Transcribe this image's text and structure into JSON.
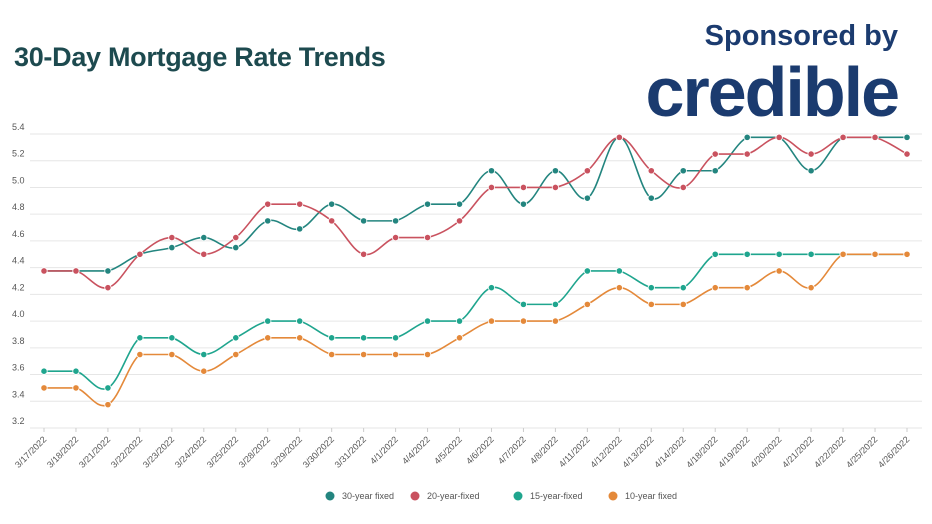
{
  "header": {
    "title": "30-Day Mortgage Rate Trends",
    "sponsor_text": "Sponsored by",
    "logo_text": "credible"
  },
  "colors": {
    "title": "#1d4a4f",
    "brand": "#1b3b6f"
  },
  "chart_data": {
    "type": "line",
    "title": "30-Day Mortgage Rate Trends",
    "xlabel": "",
    "ylabel": "",
    "ylim": [
      3.2,
      5.4
    ],
    "yticks": [
      "3.2",
      "3.4",
      "3.6",
      "3.8",
      "4.0",
      "4.2",
      "4.4",
      "4.6",
      "4.8",
      "5.0",
      "5.2",
      "5.4"
    ],
    "grid": true,
    "legend_position": "bottom",
    "categories": [
      "3/17/2022",
      "3/18/2022",
      "3/21/2022",
      "3/22/2022",
      "3/23/2022",
      "3/24/2022",
      "3/25/2022",
      "3/28/2022",
      "3/29/2022",
      "3/30/2022",
      "3/31/2022",
      "4/1/2022",
      "4/4/2022",
      "4/5/2022",
      "4/6/2022",
      "4/7/2022",
      "4/8/2022",
      "4/11/2022",
      "4/12/2022",
      "4/13/2022",
      "4/14/2022",
      "4/18/2022",
      "4/19/2022",
      "4/20/2022",
      "4/21/2022",
      "4/22/2022",
      "4/25/2022",
      "4/26/2022"
    ],
    "series": [
      {
        "name": "30-year fixed",
        "color": "#23857f",
        "values": [
          4.375,
          4.375,
          4.375,
          4.5,
          4.55,
          4.625,
          4.55,
          4.75,
          4.69,
          4.875,
          4.75,
          4.75,
          4.875,
          4.875,
          5.125,
          4.875,
          5.125,
          4.92,
          5.375,
          4.92,
          5.125,
          5.125,
          5.375,
          5.375,
          5.125,
          5.375,
          5.375,
          5.375
        ]
      },
      {
        "name": "20-year-fixed",
        "color": "#c9525f",
        "values": [
          4.375,
          4.375,
          4.25,
          4.5,
          4.625,
          4.5,
          4.625,
          4.875,
          4.875,
          4.75,
          4.5,
          4.625,
          4.625,
          4.75,
          5.0,
          5.0,
          5.0,
          5.125,
          5.375,
          5.125,
          5.0,
          5.25,
          5.25,
          5.375,
          5.25,
          5.375,
          5.375,
          5.25
        ]
      },
      {
        "name": "15-year-fixed",
        "color": "#1fa58e",
        "values": [
          3.625,
          3.625,
          3.5,
          3.875,
          3.875,
          3.75,
          3.875,
          4.0,
          4.0,
          3.875,
          3.875,
          3.875,
          4.0,
          4.0,
          4.25,
          4.125,
          4.125,
          4.375,
          4.375,
          4.25,
          4.25,
          4.5,
          4.5,
          4.5,
          4.5,
          4.5,
          4.5,
          4.5
        ]
      },
      {
        "name": "10-year fixed",
        "color": "#e4893a",
        "values": [
          3.5,
          3.5,
          3.375,
          3.75,
          3.75,
          3.625,
          3.75,
          3.875,
          3.875,
          3.75,
          3.75,
          3.75,
          3.75,
          3.875,
          4.0,
          4.0,
          4.0,
          4.125,
          4.25,
          4.125,
          4.125,
          4.25,
          4.25,
          4.375,
          4.25,
          4.5,
          4.5,
          4.5
        ]
      }
    ]
  }
}
